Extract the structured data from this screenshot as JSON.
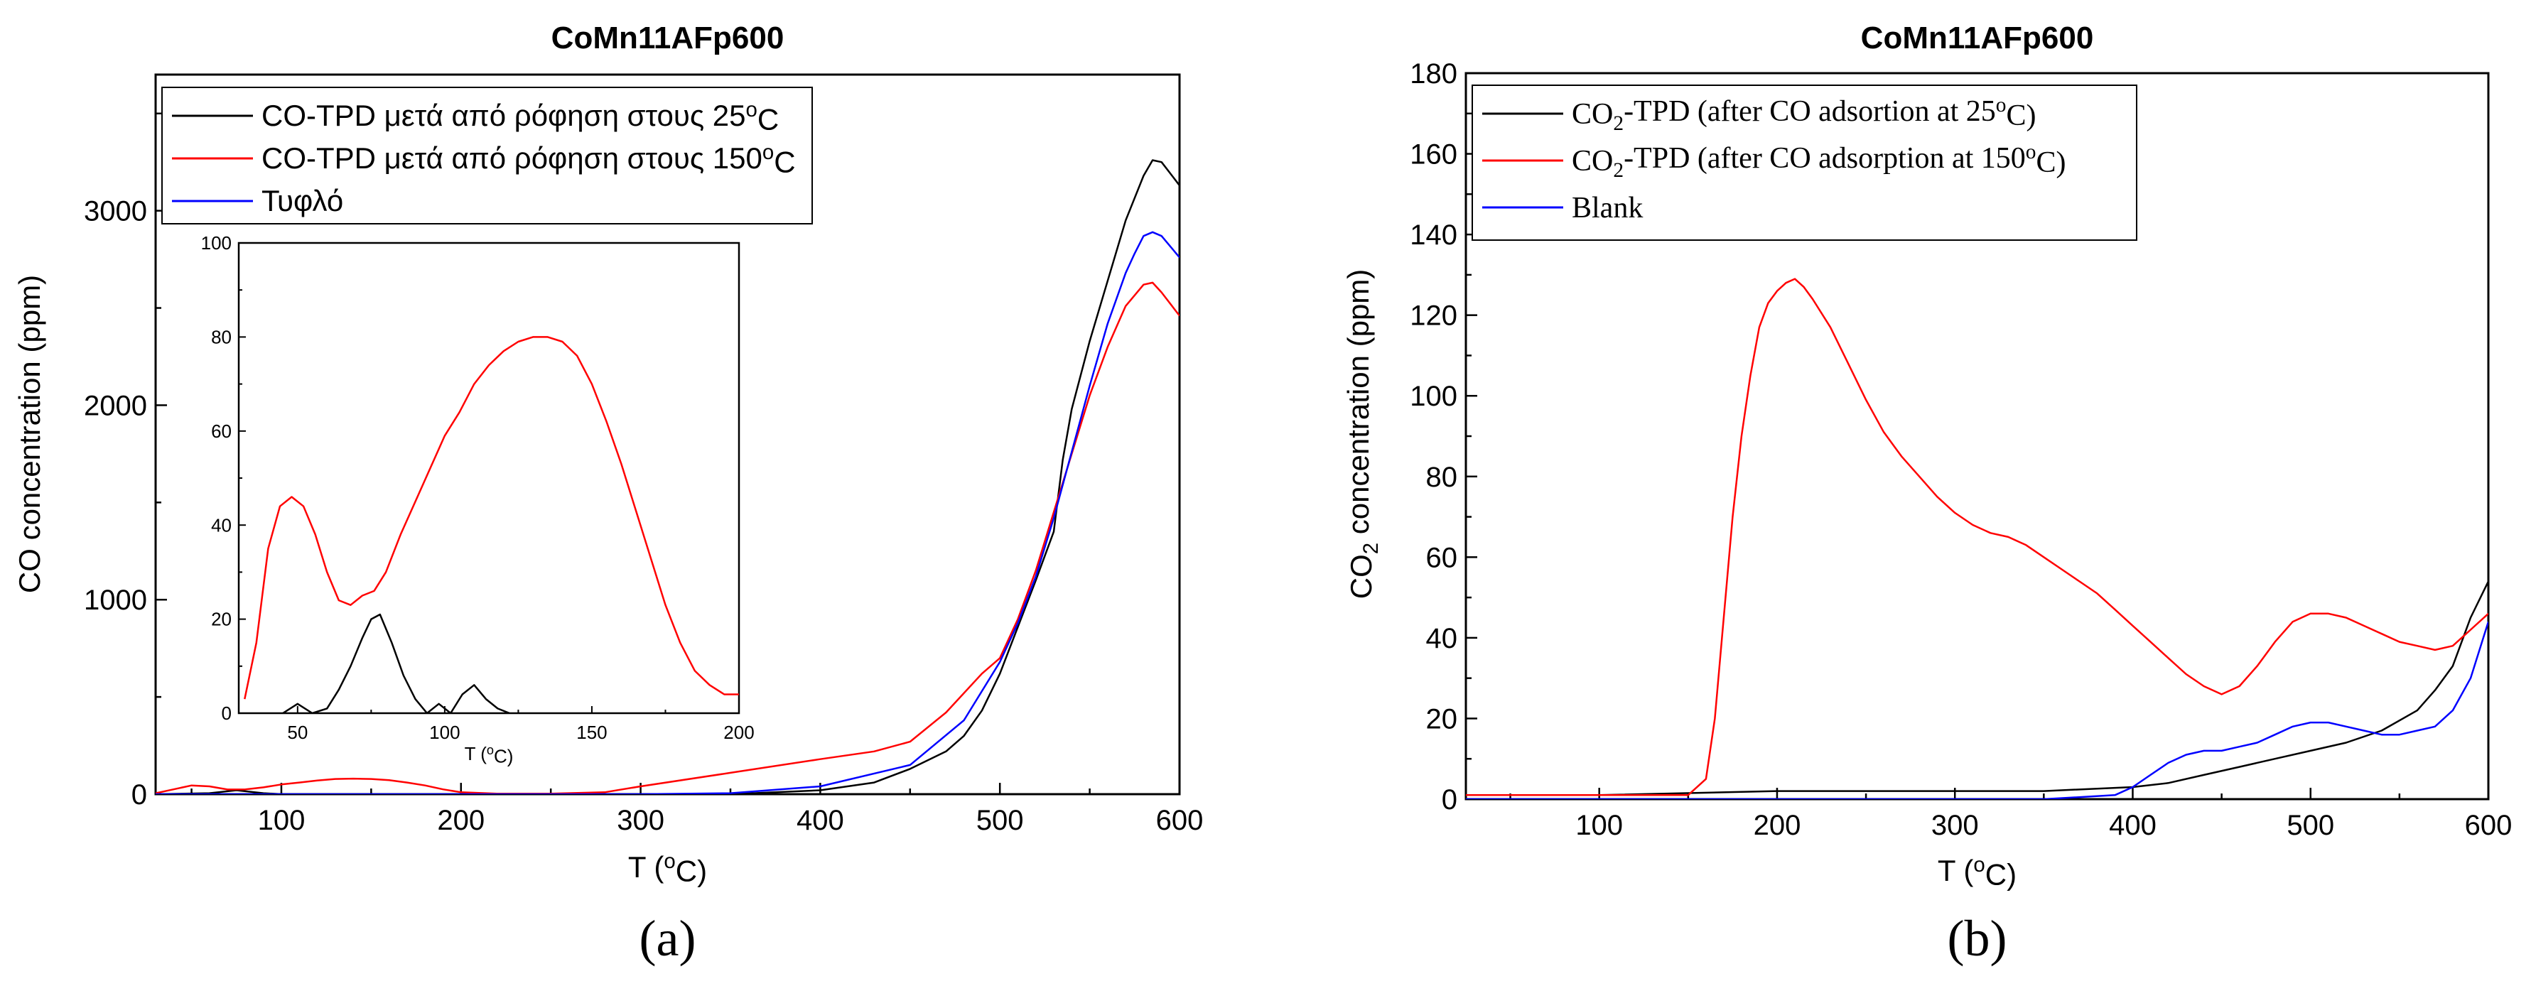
{
  "chart_data": [
    {
      "id": "a",
      "type": "line",
      "title": "CoMn11AFp600",
      "xlabel": "T (oC)",
      "ylabel": "CO concentration (ppm)",
      "panel_label": "(a)",
      "xlim": [
        30,
        600
      ],
      "ylim": [
        0,
        3700
      ],
      "xticks": [
        100,
        200,
        300,
        400,
        500,
        600
      ],
      "yticks": [
        0,
        1000,
        2000,
        3000
      ],
      "legend_location": "top-left",
      "series": [
        {
          "name": "CO-TPD μετά από ρόφηση στους 25oC",
          "color": "#000000",
          "x": [
            30,
            60,
            75,
            90,
            100,
            150,
            200,
            250,
            300,
            350,
            400,
            430,
            450,
            470,
            480,
            490,
            500,
            510,
            520,
            530,
            535,
            540,
            550,
            560,
            570,
            580,
            585,
            590,
            595,
            600
          ],
          "y": [
            0,
            5,
            20,
            5,
            0,
            0,
            0,
            0,
            0,
            0,
            20,
            60,
            130,
            220,
            300,
            430,
            620,
            860,
            1100,
            1350,
            1720,
            1980,
            2330,
            2640,
            2950,
            3180,
            3260,
            3250,
            3190,
            3130
          ]
        },
        {
          "name": "CO-TPD μετά από ρόφηση στους 150oC",
          "color": "#ff0000",
          "x": [
            30,
            40,
            50,
            60,
            70,
            80,
            90,
            100,
            110,
            120,
            130,
            140,
            150,
            160,
            170,
            180,
            190,
            200,
            220,
            250,
            280,
            300,
            350,
            400,
            430,
            450,
            470,
            490,
            500,
            510,
            520,
            530,
            540,
            550,
            560,
            570,
            580,
            585,
            590,
            600
          ],
          "y": [
            5,
            25,
            45,
            40,
            24,
            25,
            35,
            50,
            60,
            70,
            78,
            80,
            78,
            72,
            60,
            45,
            25,
            10,
            3,
            3,
            10,
            40,
            110,
            180,
            220,
            270,
            420,
            620,
            700,
            900,
            1150,
            1450,
            1750,
            2050,
            2300,
            2510,
            2620,
            2630,
            2580,
            2460
          ]
        },
        {
          "name": "Τυφλό",
          "color": "#0000ff",
          "x": [
            30,
            100,
            200,
            300,
            350,
            400,
            450,
            480,
            500,
            510,
            520,
            530,
            540,
            550,
            560,
            570,
            575,
            580,
            585,
            590,
            600
          ],
          "y": [
            0,
            0,
            0,
            0,
            5,
            40,
            150,
            380,
            680,
            880,
            1120,
            1420,
            1760,
            2100,
            2420,
            2680,
            2780,
            2870,
            2890,
            2870,
            2760
          ]
        }
      ],
      "inset": {
        "type": "line",
        "xlabel": "T (oC)",
        "xlim": [
          30,
          200
        ],
        "ylim": [
          0,
          100
        ],
        "xticks": [
          50,
          100,
          150,
          200
        ],
        "yticks": [
          0,
          20,
          40,
          60,
          80,
          100
        ],
        "series": [
          {
            "name": "CO-TPD μετά από ρόφηση στους 150oC",
            "color": "#ff0000",
            "x": [
              32,
              36,
              40,
              44,
              48,
              52,
              56,
              60,
              64,
              68,
              72,
              76,
              80,
              85,
              90,
              95,
              100,
              105,
              110,
              115,
              120,
              125,
              130,
              135,
              140,
              145,
              150,
              155,
              160,
              165,
              170,
              175,
              180,
              185,
              190,
              195,
              200
            ],
            "y": [
              3,
              15,
              35,
              44,
              46,
              44,
              38,
              30,
              24,
              23,
              25,
              26,
              30,
              38,
              45,
              52,
              59,
              64,
              70,
              74,
              77,
              79,
              80,
              80,
              79,
              76,
              70,
              62,
              53,
              43,
              33,
              23,
              15,
              9,
              6,
              4,
              4
            ]
          },
          {
            "name": "CO-TPD μετά από ρόφηση στους 25oC",
            "color": "#000000",
            "x": [
              45,
              50,
              55,
              60,
              64,
              68,
              72,
              75,
              78,
              82,
              86,
              90,
              94,
              98,
              102,
              106,
              110,
              114,
              118,
              122
            ],
            "y": [
              0,
              2,
              0,
              1,
              5,
              10,
              16,
              20,
              21,
              15,
              8,
              3,
              0,
              2,
              0,
              4,
              6,
              3,
              1,
              0
            ]
          }
        ]
      }
    },
    {
      "id": "b",
      "type": "line",
      "title": "CoMn11AFp600",
      "xlabel": "T (oC)",
      "ylabel": "CO2 concentration (ppm)",
      "panel_label": "(b)",
      "xlim": [
        25,
        600
      ],
      "ylim": [
        0,
        180
      ],
      "xticks": [
        100,
        200,
        300,
        400,
        500,
        600
      ],
      "yticks": [
        0,
        20,
        40,
        60,
        80,
        100,
        120,
        140,
        160,
        180
      ],
      "legend_location": "top-left",
      "series": [
        {
          "name": "CO2-TPD (after CO adsortion at 25oC)",
          "color": "#000000",
          "x": [
            25,
            100,
            200,
            300,
            350,
            400,
            420,
            440,
            460,
            480,
            500,
            520,
            540,
            560,
            570,
            580,
            590,
            600
          ],
          "y": [
            1,
            1,
            2,
            2,
            2,
            3,
            4,
            6,
            8,
            10,
            12,
            14,
            17,
            22,
            27,
            33,
            45,
            54
          ]
        },
        {
          "name": "CO2-TPD (after CO adsorption at 150oC)",
          "color": "#ff0000",
          "x": [
            25,
            100,
            150,
            160,
            165,
            170,
            175,
            180,
            185,
            190,
            195,
            200,
            205,
            210,
            215,
            220,
            230,
            240,
            250,
            260,
            270,
            280,
            290,
            300,
            310,
            320,
            330,
            340,
            350,
            360,
            370,
            380,
            390,
            400,
            410,
            420,
            430,
            440,
            450,
            460,
            470,
            480,
            490,
            500,
            510,
            520,
            530,
            540,
            550,
            560,
            570,
            580,
            590,
            600
          ],
          "y": [
            1,
            1,
            1,
            5,
            20,
            45,
            70,
            90,
            105,
            117,
            123,
            126,
            128,
            129,
            127,
            124,
            117,
            108,
            99,
            91,
            85,
            80,
            75,
            71,
            68,
            66,
            65,
            63,
            60,
            57,
            54,
            51,
            47,
            43,
            39,
            35,
            31,
            28,
            26,
            28,
            33,
            39,
            44,
            46,
            46,
            45,
            43,
            41,
            39,
            38,
            37,
            38,
            42,
            46
          ]
        },
        {
          "name": "Blank",
          "color": "#0000ff",
          "x": [
            25,
            200,
            350,
            390,
            400,
            410,
            420,
            430,
            440,
            450,
            460,
            470,
            480,
            490,
            500,
            510,
            520,
            530,
            540,
            550,
            560,
            570,
            580,
            590,
            600
          ],
          "y": [
            0,
            0,
            0,
            1,
            3,
            6,
            9,
            11,
            12,
            12,
            13,
            14,
            16,
            18,
            19,
            19,
            18,
            17,
            16,
            16,
            17,
            18,
            22,
            30,
            44
          ]
        }
      ]
    }
  ]
}
